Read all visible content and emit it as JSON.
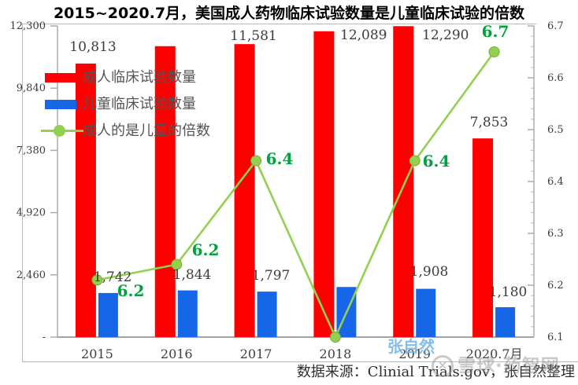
{
  "title": "2015~2020.7月，美国成人药物临床试验数量是儿童临床试验的倍数",
  "caption": "数据来源：Clinial Trials.gov，张自然整理",
  "watermarks": {
    "author_blue": "张自然",
    "site_gray": "雪球·药智网",
    "logo_glyph": "✕"
  },
  "legend": {
    "items": [
      {
        "label": "成人临床试验数量",
        "type": "bar",
        "color": "#FE0000"
      },
      {
        "label": "儿童临床试验数量",
        "type": "bar",
        "color": "#1567E8"
      },
      {
        "label": "成人的是儿童的倍数",
        "type": "line",
        "color": "#92D050"
      }
    ]
  },
  "chart_data": {
    "type": "bar",
    "subtype": "bar-line-combo",
    "title": "2015~2020.7月，美国成人药物临床试验数量是儿童临床试验的倍数",
    "categories": [
      "2015",
      "2016",
      "2017",
      "2018",
      "2019",
      "2020.7月"
    ],
    "series": [
      {
        "name": "成人临床试验数量",
        "kind": "bar",
        "axis": "left",
        "color": "#FE0000",
        "values": [
          10813,
          11500,
          11581,
          12089,
          12290,
          7853
        ],
        "data_labels": [
          "10,813",
          null,
          "11,581",
          "12,089",
          "12,290",
          "7,853"
        ]
      },
      {
        "name": "儿童临床试验数量",
        "kind": "bar",
        "axis": "left",
        "color": "#1567E8",
        "values": [
          1742,
          1844,
          1797,
          1980,
          1908,
          1180
        ],
        "data_labels": [
          "1,742",
          "1,844",
          "1,797",
          null,
          "1,908",
          "1,180"
        ]
      },
      {
        "name": "成人的是儿童的倍数",
        "kind": "line",
        "axis": "right",
        "color": "#92D050",
        "marker_color": "#92D050",
        "marker_stroke": "#76AC3B",
        "label_color": "#00A13E",
        "values": [
          6.21,
          6.24,
          6.44,
          6.1,
          6.44,
          6.65
        ],
        "data_labels": [
          "6.2",
          "6.2",
          "6.4",
          null,
          "6.4",
          "6.7"
        ]
      }
    ],
    "left_axis": {
      "min": 0,
      "max": 12300,
      "tick_values": [
        12300,
        9840,
        7380,
        4920,
        2460,
        0
      ],
      "tick_labels": [
        "12,300",
        "9,840",
        "7,380",
        "4,920",
        "2,460",
        "-"
      ]
    },
    "right_axis": {
      "min": 6.1,
      "max": 6.7,
      "tick_values": [
        6.7,
        6.6,
        6.5,
        6.4,
        6.3,
        6.2,
        6.1
      ],
      "tick_labels": [
        "6.7",
        "6.6",
        "6.5",
        "6.4",
        "6.3",
        "6.2",
        "6.1"
      ],
      "minor_tick_step": 0.02
    },
    "grid": false,
    "legend_position": "top-left-inside"
  }
}
